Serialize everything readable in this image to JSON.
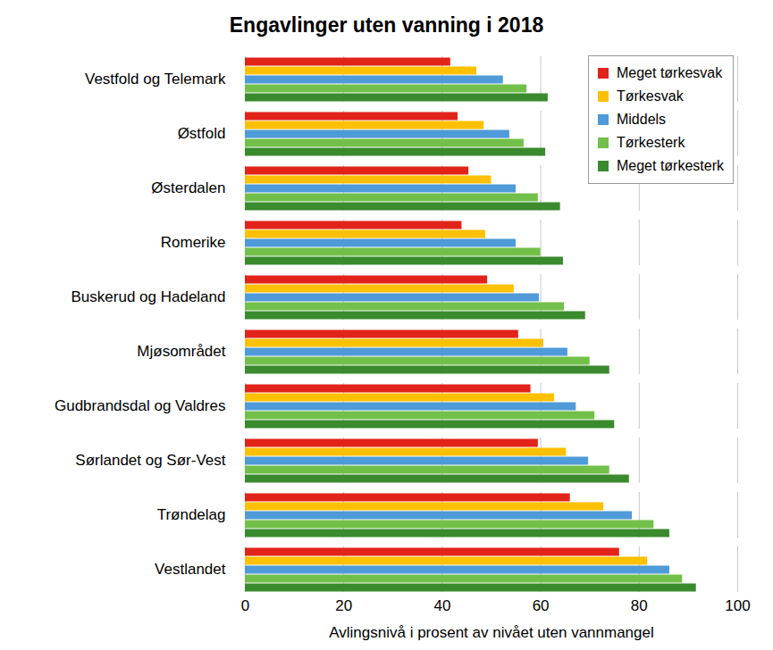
{
  "chart_data": {
    "type": "bar",
    "orientation": "horizontal",
    "title": "Engavlinger uten vanning i 2018",
    "xlabel": "Avlingsnivå i prosent av nivået uten vannmangel",
    "categories": [
      "Vestfold og Telemark",
      "Østfold",
      "Østerdalen",
      "Romerike",
      "Buskerud og Hadeland",
      "Mjøsområdet",
      "Gudbrandsdal og Valdres",
      "Sørlandet og Sør-Vest",
      "Trøndelag",
      "Vestlandet"
    ],
    "series": [
      {
        "name": "Meget tørkesvak",
        "color": "#e2231a",
        "values": [
          41.7,
          43.2,
          45.4,
          44,
          49.2,
          55.5,
          58,
          59.5,
          66,
          76
        ]
      },
      {
        "name": "Tørkesvak",
        "color": "#ffc000",
        "values": [
          47,
          48.5,
          50,
          48.8,
          54.6,
          60.6,
          62.8,
          65.2,
          72.8,
          81.7
        ]
      },
      {
        "name": "Middels",
        "color": "#4f9ad8",
        "values": [
          52.4,
          53.7,
          55,
          55,
          59.7,
          65.5,
          67.2,
          69.7,
          78.6,
          86.2
        ]
      },
      {
        "name": "Tørkesterk",
        "color": "#72c04a",
        "values": [
          57.2,
          56.6,
          59.5,
          60,
          64.8,
          70,
          71,
          74,
          83,
          88.8
        ]
      },
      {
        "name": "Meget tørkesterk",
        "color": "#3a8a2e",
        "values": [
          61.5,
          61,
          64,
          64.6,
          69.1,
          74,
          75,
          78,
          86.2,
          91.6
        ]
      }
    ],
    "xlim": [
      0,
      100
    ],
    "xticks": [
      0,
      20,
      40,
      60,
      80,
      100
    ],
    "grid": true,
    "legend": "top-right"
  }
}
